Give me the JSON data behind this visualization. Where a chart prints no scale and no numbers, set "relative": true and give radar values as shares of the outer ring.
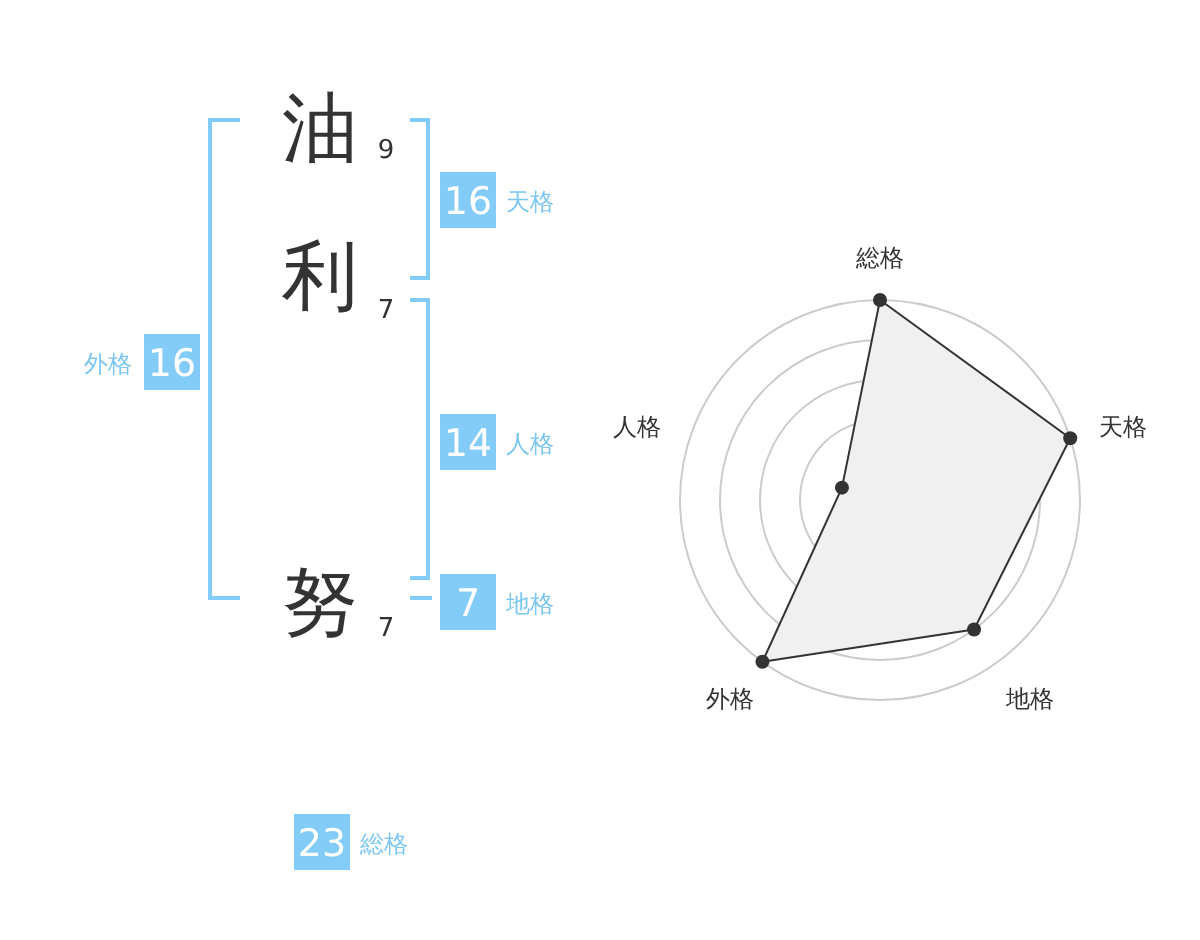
{
  "chart_data": [
    {
      "type": "other",
      "annotations": [
        "油",
        "9",
        "利",
        "7",
        "努",
        "7",
        "16",
        "天格",
        "14",
        "人格",
        "7",
        "地格",
        "16",
        "外格",
        "23",
        "総格"
      ]
    },
    {
      "type": "radar",
      "categories": [
        "総格",
        "天格",
        "地格",
        "外格",
        "人格"
      ],
      "relative": true,
      "marker": "circle",
      "series": [
        {
          "color": "#333333",
          "values": [
            1,
            1,
            0.8,
            1,
            0.2
          ]
        }
      ]
    }
  ]
}
